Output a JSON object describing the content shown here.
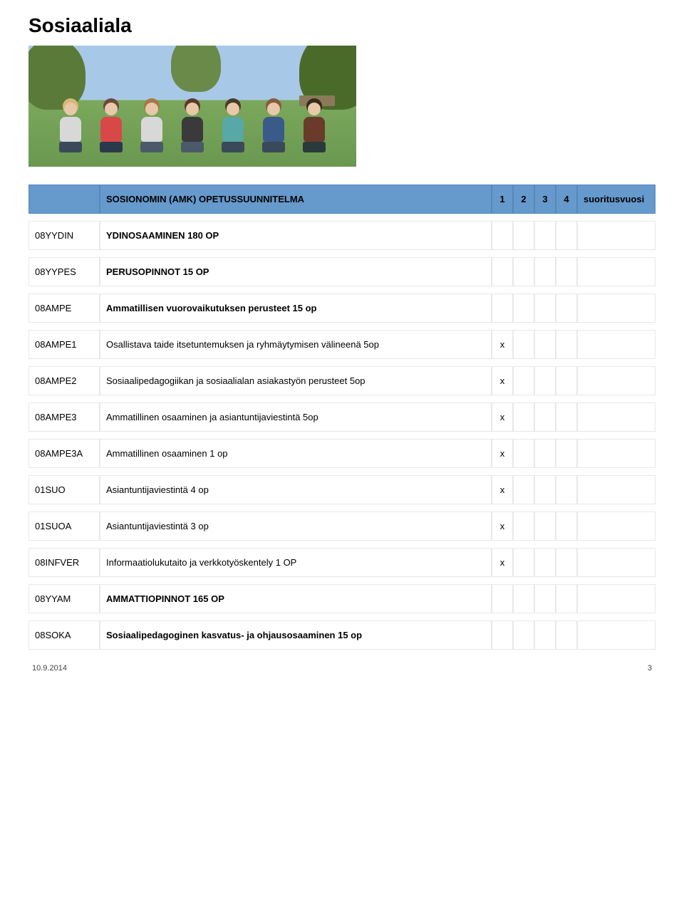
{
  "page_title": "Sosiaaliala",
  "hero": {
    "people_colors": [
      {
        "torso": "#d8d8d8",
        "legs": "#3a4a5a",
        "hair": "#d8b878"
      },
      {
        "torso": "#d84848",
        "legs": "#2a3a4a",
        "hair": "#6a4a3a"
      },
      {
        "torso": "#d8d8d8",
        "legs": "#4a5a6a",
        "hair": "#a87848"
      },
      {
        "torso": "#3a3a3a",
        "legs": "#4a5a6a",
        "hair": "#5a3a2a"
      },
      {
        "torso": "#58a8a8",
        "legs": "#3a4a5a",
        "hair": "#4a3a2a"
      },
      {
        "torso": "#3a5a8a",
        "legs": "#3a4a5a",
        "hair": "#8a5a3a"
      },
      {
        "torso": "#6a3a2a",
        "legs": "#2a3a3a",
        "hair": "#3a2a1a"
      }
    ]
  },
  "table": {
    "header": {
      "title": "SOSIONOMIN (AMK) OPETUSSUUNNITELMA",
      "cols": [
        "1",
        "2",
        "3",
        "4"
      ],
      "last": "suoritusvuosi"
    },
    "rows": [
      {
        "code": "08YYDIN",
        "desc": "YDINOSAAMINEN 180 OP",
        "bold": true,
        "marks": [
          "",
          "",
          "",
          ""
        ]
      },
      {
        "code": "08YYPES",
        "desc": "PERUSOPINNOT 15 OP",
        "bold": true,
        "marks": [
          "",
          "",
          "",
          ""
        ]
      },
      {
        "code": "08AMPE",
        "desc": "Ammatillisen vuorovaikutuksen perusteet 15 op",
        "bold": true,
        "marks": [
          "",
          "",
          "",
          ""
        ]
      },
      {
        "code": "08AMPE1",
        "desc": "Osallistava taide itsetuntemuksen ja ryhmäytymisen välineenä 5op",
        "bold": false,
        "marks": [
          "x",
          "",
          "",
          ""
        ]
      },
      {
        "code": "08AMPE2",
        "desc": "Sosiaalipedagogiikan ja sosiaalialan asiakastyön perusteet 5op",
        "bold": false,
        "marks": [
          "x",
          "",
          "",
          ""
        ]
      },
      {
        "code": "08AMPE3",
        "desc": "Ammatillinen osaaminen ja asiantuntijaviestintä 5op",
        "bold": false,
        "marks": [
          "x",
          "",
          "",
          ""
        ]
      },
      {
        "code": "08AMPE3A",
        "desc": "Ammatillinen osaaminen 1 op",
        "bold": false,
        "marks": [
          "x",
          "",
          "",
          ""
        ]
      },
      {
        "code": "01SUO",
        "desc": "Asiantuntijaviestintä 4 op",
        "bold": false,
        "marks": [
          "x",
          "",
          "",
          ""
        ]
      },
      {
        "code": "01SUOA",
        "desc": "Asiantuntijaviestintä 3 op",
        "bold": false,
        "marks": [
          "x",
          "",
          "",
          ""
        ]
      },
      {
        "code": "08INFVER",
        "desc": "Informaatiolukutaito ja verkkotyöskentely 1 OP",
        "bold": false,
        "marks": [
          "x",
          "",
          "",
          ""
        ]
      },
      {
        "code": "08YYAM",
        "desc": "AMMATTIOPINNOT 165 OP",
        "bold": true,
        "marks": [
          "",
          "",
          "",
          ""
        ]
      },
      {
        "code": "08SOKA",
        "desc": "Sosiaalipedagoginen kasvatus- ja ohjausosaaminen 15 op",
        "bold": true,
        "marks": [
          "",
          "",
          "",
          ""
        ]
      }
    ]
  },
  "footer": {
    "date": "10.9.2014",
    "page": "3"
  }
}
